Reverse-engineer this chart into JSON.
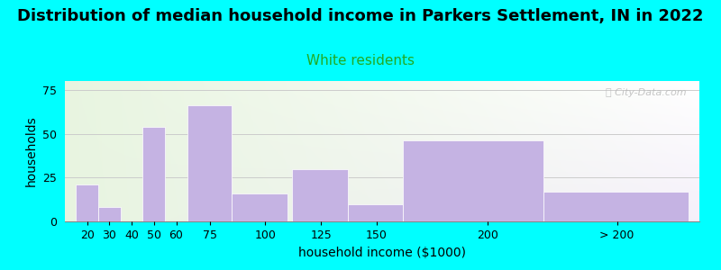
{
  "title": "Distribution of median household income in Parkers Settlement, IN in 2022",
  "subtitle": "White residents",
  "xlabel": "household income ($1000)",
  "ylabel": "households",
  "background_color": "#00FFFF",
  "bar_color": "#c5b3e3",
  "categories": [
    "20",
    "30",
    "40",
    "50",
    "60",
    "75",
    "100",
    "125",
    "150",
    "200",
    "> 200"
  ],
  "values": [
    21,
    8,
    0,
    54,
    0,
    66,
    16,
    30,
    10,
    46,
    17
  ],
  "bar_lefts": [
    15,
    25,
    35,
    45,
    55,
    65,
    85,
    112,
    137,
    162,
    225
  ],
  "bar_widths": [
    10,
    10,
    10,
    10,
    10,
    20,
    25,
    25,
    25,
    63,
    65
  ],
  "xtick_positions": [
    20,
    30,
    40,
    50,
    60,
    75,
    100,
    125,
    150,
    200,
    258
  ],
  "ylim": [
    0,
    80
  ],
  "yticks": [
    0,
    25,
    50,
    75
  ],
  "title_fontsize": 13,
  "subtitle_fontsize": 11,
  "subtitle_color": "#22aa22",
  "axis_label_fontsize": 10,
  "tick_fontsize": 9,
  "watermark_text": "ⓘ City-Data.com"
}
